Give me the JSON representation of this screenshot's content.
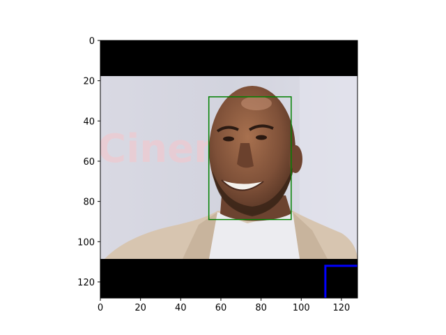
{
  "figure": {
    "x_ticks": [
      "0",
      "20",
      "40",
      "60",
      "80",
      "100",
      "120"
    ],
    "y_ticks": [
      "0",
      "20",
      "40",
      "60",
      "80",
      "100",
      "120"
    ],
    "x_tick_values": [
      0,
      20,
      40,
      60,
      80,
      100,
      120
    ],
    "y_tick_values": [
      0,
      20,
      40,
      60,
      80,
      100,
      120
    ],
    "image_extent": [
      0,
      128,
      0,
      128
    ],
    "photo_rows": [
      17.5,
      108.5
    ],
    "face_box": {
      "x": [
        54,
        95
      ],
      "y": [
        28,
        89
      ],
      "color": "#008000"
    },
    "corner_marker": {
      "x": [
        112,
        128
      ],
      "y": [
        112,
        128
      ],
      "color": "#0000ff"
    },
    "colors": {
      "letterbox": "#000000",
      "background": "#dcdce6",
      "skin": "#8a5a3f",
      "suit": "#d8c6b2",
      "shirt": "#eeeeee"
    }
  }
}
